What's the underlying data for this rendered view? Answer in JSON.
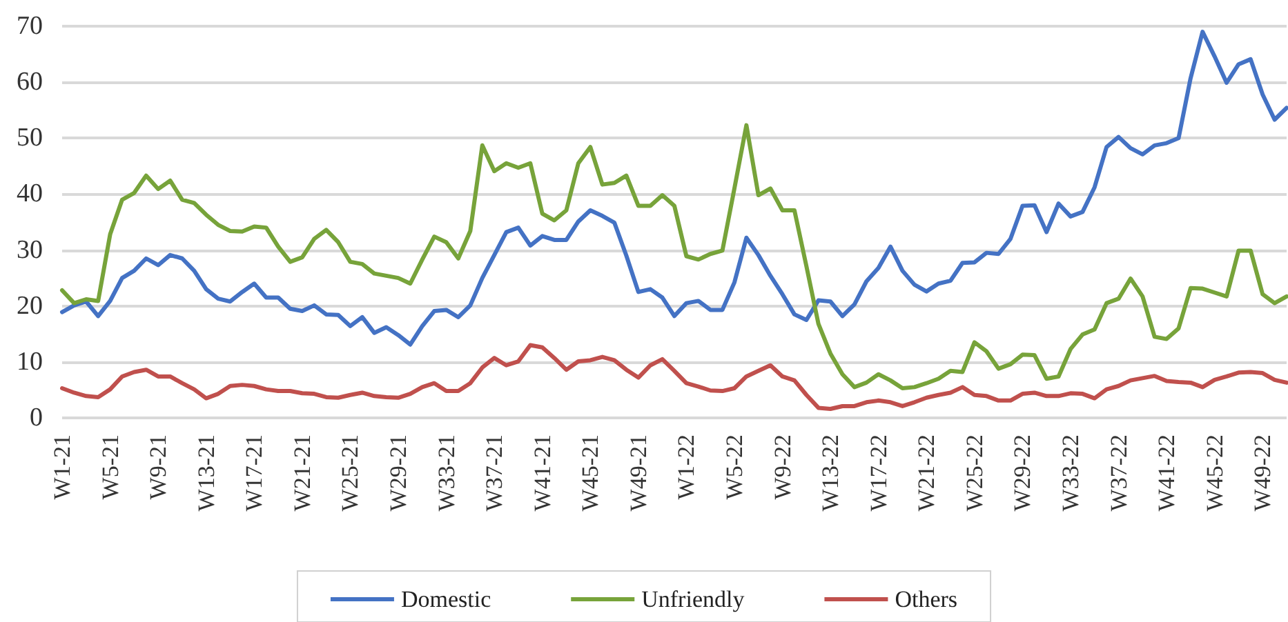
{
  "chart_data": {
    "type": "line",
    "categories": [
      "W1-21",
      null,
      null,
      null,
      "W5-21",
      null,
      null,
      null,
      "W9-21",
      null,
      null,
      null,
      "W13-21",
      null,
      null,
      null,
      "W17-21",
      null,
      null,
      null,
      "W21-21",
      null,
      null,
      null,
      "W25-21",
      null,
      null,
      null,
      "W29-21",
      null,
      null,
      null,
      "W33-21",
      null,
      null,
      null,
      "W37-21",
      null,
      null,
      null,
      "W41-21",
      null,
      null,
      null,
      "W45-21",
      null,
      null,
      null,
      "W49-21",
      null,
      null,
      null,
      "W1-22",
      null,
      null,
      null,
      "W5-22",
      null,
      null,
      null,
      "W9-22",
      null,
      null,
      null,
      "W13-22",
      null,
      null,
      null,
      "W17-22",
      null,
      null,
      null,
      "W21-22",
      null,
      null,
      null,
      "W25-22",
      null,
      null,
      null,
      "W29-22",
      null,
      null,
      null,
      "W33-22",
      null,
      null,
      null,
      "W37-22",
      null,
      null,
      null,
      "W41-22",
      null,
      null,
      null,
      "W45-22",
      null,
      null,
      null,
      "W49-22",
      null,
      null
    ],
    "series": [
      {
        "name": "Domestic",
        "color": "#4472c4",
        "values": [
          18.9,
          20.1,
          20.8,
          18.2,
          20.9,
          25,
          26.3,
          28.5,
          27.3,
          29.1,
          28.5,
          26.3,
          23,
          21.3,
          20.8,
          22.5,
          24,
          21.5,
          21.5,
          19.5,
          19.1,
          20.1,
          18.5,
          18.4,
          16.4,
          18,
          15.2,
          16.2,
          14.8,
          13.1,
          16.4,
          19.1,
          19.3,
          18,
          20.1,
          25,
          29.1,
          33.2,
          34,
          30.8,
          32.5,
          31.8,
          31.8,
          35.1,
          37.1,
          36.1,
          34.9,
          29,
          22.5,
          23,
          21.5,
          18.2,
          20.5,
          20.9,
          19.3,
          19.3,
          24.2,
          32.2,
          29.1,
          25.4,
          22.1,
          18.5,
          17.5,
          21,
          20.8,
          18.2,
          20.3,
          24.4,
          26.8,
          30.6,
          26.3,
          23.8,
          22.6,
          24,
          24.5,
          27.7,
          27.8,
          29.5,
          29.3,
          32,
          37.9,
          38,
          33.2,
          38.3,
          36,
          36.8,
          41.2,
          48.4,
          50.2,
          48.2,
          47.1,
          48.7,
          49.1,
          50,
          60.7,
          69,
          64.6,
          59.9,
          63.2,
          64.1,
          57.8,
          53.3,
          55.4
        ]
      },
      {
        "name": "Unfriendly",
        "color": "#77a33a",
        "values": [
          22.8,
          20.5,
          21.2,
          20.9,
          32.8,
          39,
          40.2,
          43.3,
          40.9,
          42.4,
          39,
          38.4,
          36.3,
          34.5,
          33.4,
          33.3,
          34.2,
          34,
          30.6,
          27.9,
          28.7,
          32,
          33.6,
          31.4,
          27.9,
          27.5,
          25.8,
          25.4,
          25,
          24,
          28.3,
          32.4,
          31.4,
          28.5,
          33.4,
          48.7,
          44.1,
          45.5,
          44.7,
          45.5,
          36.5,
          35.3,
          37.1,
          45.5,
          48.4,
          41.7,
          42,
          43.3,
          37.9,
          37.9,
          39.8,
          37.9,
          28.9,
          28.3,
          29.3,
          29.9,
          41,
          52.3,
          39.8,
          41,
          37.1,
          37.1,
          27.1,
          16.8,
          11.5,
          7.8,
          5.5,
          6.3,
          7.8,
          6.7,
          5.3,
          5.5,
          6.2,
          7,
          8.4,
          8.2,
          13.5,
          11.9,
          8.8,
          9.6,
          11.3,
          11.2,
          7,
          7.4,
          12.3,
          14.9,
          15.8,
          20.5,
          21.3,
          24.9,
          21.7,
          14.5,
          14.1,
          16,
          23.2,
          23.1,
          22.4,
          21.7,
          29.9,
          29.9,
          22.1,
          20.5,
          21.7
        ]
      },
      {
        "name": "Others",
        "color": "#c0504d",
        "values": [
          5.3,
          4.5,
          3.9,
          3.7,
          5.1,
          7.4,
          8.2,
          8.6,
          7.4,
          7.4,
          6.2,
          5.1,
          3.5,
          4.3,
          5.7,
          5.9,
          5.7,
          5.1,
          4.8,
          4.8,
          4.4,
          4.3,
          3.7,
          3.6,
          4.1,
          4.5,
          3.9,
          3.7,
          3.6,
          4.3,
          5.5,
          6.2,
          4.8,
          4.8,
          6.2,
          9,
          10.7,
          9.4,
          10.1,
          13,
          12.6,
          10.7,
          8.6,
          10.1,
          10.3,
          10.9,
          10.3,
          8.6,
          7.2,
          9.4,
          10.5,
          8.4,
          6.2,
          5.6,
          4.9,
          4.8,
          5.3,
          7.4,
          8.4,
          9.4,
          7.4,
          6.7,
          4.1,
          1.8,
          1.6,
          2.1,
          2.1,
          2.8,
          3.1,
          2.8,
          2.1,
          2.8,
          3.6,
          4.1,
          4.5,
          5.5,
          4.1,
          3.9,
          3.1,
          3.1,
          4.3,
          4.5,
          3.9,
          3.9,
          4.4,
          4.3,
          3.5,
          5.1,
          5.7,
          6.7,
          7.1,
          7.5,
          6.6,
          6.4,
          6.3,
          5.5,
          6.8,
          7.4,
          8.1,
          8.2,
          8,
          6.8,
          6.3
        ]
      }
    ],
    "ylim": [
      0,
      70
    ],
    "yticks": [
      0,
      10,
      20,
      30,
      40,
      50,
      60,
      70
    ],
    "grid": "y",
    "legend": "bottom",
    "marker": "none",
    "line_style": "solid"
  }
}
